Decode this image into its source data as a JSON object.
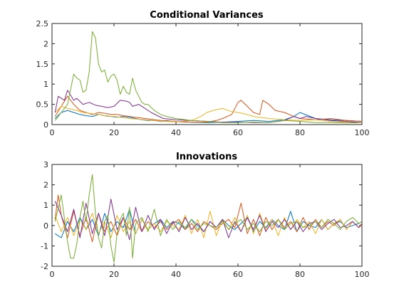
{
  "chart_data": [
    {
      "type": "line",
      "title": "Conditional Variances",
      "xlabel": "",
      "ylabel": "",
      "xlim": [
        0,
        100
      ],
      "ylim": [
        0,
        2.5
      ],
      "xticks": [
        0,
        20,
        40,
        60,
        80,
        100
      ],
      "yticks": [
        0,
        0.5,
        1,
        1.5,
        2,
        2.5
      ],
      "grid": false,
      "legend": "none",
      "series": [
        {
          "color": "#0072BD",
          "x": [
            1,
            3,
            5,
            7,
            9,
            11,
            13,
            15,
            17,
            19,
            21,
            23,
            25,
            27,
            29,
            31,
            33,
            35,
            37,
            39,
            41,
            45,
            50,
            55,
            60,
            65,
            70,
            73,
            75,
            78,
            80,
            85,
            90,
            95,
            100
          ],
          "y": [
            0.15,
            0.3,
            0.35,
            0.3,
            0.25,
            0.22,
            0.2,
            0.25,
            0.22,
            0.2,
            0.18,
            0.2,
            0.18,
            0.15,
            0.12,
            0.1,
            0.1,
            0.08,
            0.1,
            0.08,
            0.07,
            0.06,
            0.05,
            0.06,
            0.08,
            0.1,
            0.08,
            0.1,
            0.12,
            0.2,
            0.3,
            0.15,
            0.12,
            0.1,
            0.08
          ]
        },
        {
          "color": "#D95319",
          "x": [
            1,
            3,
            5,
            7,
            9,
            11,
            13,
            15,
            17,
            19,
            21,
            23,
            25,
            30,
            35,
            40,
            45,
            50,
            53,
            55,
            58,
            60,
            61,
            63,
            65,
            67,
            68,
            70,
            72,
            75,
            78,
            80,
            85,
            90,
            95,
            100
          ],
          "y": [
            0.2,
            0.45,
            0.7,
            0.5,
            0.35,
            0.3,
            0.25,
            0.3,
            0.28,
            0.25,
            0.25,
            0.22,
            0.2,
            0.15,
            0.1,
            0.08,
            0.06,
            0.06,
            0.1,
            0.15,
            0.25,
            0.55,
            0.6,
            0.45,
            0.3,
            0.25,
            0.6,
            0.5,
            0.35,
            0.3,
            0.2,
            0.15,
            0.12,
            0.15,
            0.1,
            0.08
          ]
        },
        {
          "color": "#EDB120",
          "x": [
            1,
            3,
            5,
            8,
            10,
            12,
            15,
            18,
            20,
            25,
            30,
            33,
            36,
            40,
            45,
            48,
            50,
            52,
            55,
            58,
            60,
            63,
            65,
            70,
            75,
            80,
            85,
            90,
            95,
            100
          ],
          "y": [
            0.3,
            0.45,
            0.4,
            0.35,
            0.3,
            0.28,
            0.25,
            0.2,
            0.2,
            0.15,
            0.12,
            0.1,
            0.08,
            0.07,
            0.1,
            0.2,
            0.3,
            0.35,
            0.4,
            0.32,
            0.3,
            0.25,
            0.2,
            0.15,
            0.12,
            0.1,
            0.12,
            0.08,
            0.06,
            0.05
          ]
        },
        {
          "color": "#7E2F8E",
          "x": [
            1,
            2,
            4,
            5,
            7,
            8,
            10,
            12,
            14,
            16,
            18,
            20,
            22,
            24,
            25,
            26,
            28,
            30,
            32,
            34,
            36,
            40,
            45,
            50,
            55,
            60,
            65,
            70,
            75,
            78,
            80,
            82,
            85,
            90,
            95,
            100
          ],
          "y": [
            0.3,
            0.7,
            0.6,
            0.85,
            0.6,
            0.65,
            0.5,
            0.55,
            0.48,
            0.45,
            0.42,
            0.45,
            0.6,
            0.58,
            0.55,
            0.45,
            0.5,
            0.4,
            0.3,
            0.22,
            0.15,
            0.12,
            0.1,
            0.08,
            0.06,
            0.06,
            0.05,
            0.05,
            0.1,
            0.2,
            0.15,
            0.2,
            0.15,
            0.1,
            0.08,
            0.05
          ]
        },
        {
          "color": "#77AC30",
          "x": [
            1,
            3,
            5,
            7,
            8,
            9,
            10,
            11,
            12,
            13,
            14,
            15,
            16,
            17,
            18,
            19,
            20,
            21,
            22,
            23,
            24,
            25,
            26,
            27,
            28,
            29,
            30,
            31,
            32,
            33,
            35,
            37,
            40,
            45,
            50,
            55,
            60,
            65,
            70,
            75,
            80,
            85,
            90,
            95,
            100
          ],
          "y": [
            0.1,
            0.3,
            0.5,
            1.25,
            1.15,
            1.1,
            0.8,
            0.85,
            1.3,
            2.3,
            2.15,
            1.5,
            1.3,
            1.35,
            1.05,
            1.2,
            1.25,
            1.1,
            0.75,
            0.95,
            0.8,
            0.75,
            1.15,
            0.85,
            0.7,
            0.55,
            0.5,
            0.5,
            0.42,
            0.35,
            0.25,
            0.2,
            0.15,
            0.1,
            0.08,
            0.05,
            0.05,
            0.06,
            0.05,
            0.1,
            0.08,
            0.05,
            0.05,
            0.04,
            0.05
          ]
        }
      ]
    },
    {
      "type": "line",
      "title": "Innovations",
      "xlabel": "",
      "ylabel": "",
      "xlim": [
        0,
        100
      ],
      "ylim": [
        -2,
        3
      ],
      "xticks": [
        0,
        20,
        40,
        60,
        80,
        100
      ],
      "yticks": [
        -2,
        -1,
        0,
        1,
        2,
        3
      ],
      "grid": false,
      "legend": "none",
      "series": [
        {
          "color": "#0072BD",
          "x": [
            1,
            3,
            5,
            7,
            9,
            11,
            13,
            15,
            17,
            19,
            21,
            23,
            25,
            27,
            29,
            31,
            33,
            35,
            37,
            39,
            41,
            43,
            45,
            47,
            49,
            51,
            53,
            55,
            57,
            59,
            61,
            63,
            65,
            67,
            69,
            71,
            73,
            75,
            77,
            79,
            81,
            83,
            85,
            87,
            89,
            91,
            93,
            95,
            97,
            99,
            100
          ],
          "y": [
            -0.4,
            -0.6,
            0.2,
            -0.3,
            0.4,
            -0.2,
            0.3,
            -0.5,
            0.6,
            -0.3,
            0.2,
            -0.1,
            0.8,
            -0.4,
            0.3,
            -0.2,
            0.1,
            0.3,
            -0.1,
            0.2,
            0.1,
            -0.2,
            0.3,
            0.0,
            -0.3,
            0.2,
            -0.1,
            0.3,
            0.0,
            -0.2,
            0.1,
            0.4,
            -0.3,
            0.2,
            -0.1,
            0.3,
            0.0,
            -0.2,
            0.7,
            -0.3,
            0.2,
            0.0,
            -0.1,
            0.3,
            -0.2,
            0.1,
            0.2,
            -0.1,
            0.0,
            0.1,
            0.2
          ]
        },
        {
          "color": "#D95319",
          "x": [
            1,
            2,
            3,
            5,
            7,
            9,
            11,
            13,
            15,
            17,
            19,
            21,
            23,
            25,
            27,
            29,
            31,
            33,
            35,
            37,
            39,
            41,
            43,
            45,
            47,
            49,
            51,
            53,
            55,
            57,
            59,
            61,
            63,
            65,
            67,
            69,
            71,
            73,
            75,
            77,
            79,
            81,
            83,
            85,
            87,
            89,
            91,
            93,
            95,
            97,
            99,
            100
          ],
          "y": [
            0.3,
            1.5,
            0.5,
            -0.6,
            0.7,
            -0.5,
            0.4,
            -0.8,
            0.6,
            -0.3,
            0.2,
            -0.5,
            0.4,
            -0.2,
            0.3,
            -0.3,
            0.2,
            -0.1,
            0.2,
            -0.2,
            0.1,
            0.3,
            -0.2,
            0.1,
            -0.3,
            0.2,
            0.0,
            -0.2,
            0.1,
            0.3,
            -0.1,
            1.1,
            -0.4,
            0.3,
            -0.5,
            0.4,
            -0.2,
            0.3,
            -0.1,
            0.2,
            -0.3,
            0.4,
            -0.2,
            0.3,
            -0.1,
            0.2,
            0.0,
            0.3,
            -0.2,
            0.2,
            -0.1,
            0.1
          ]
        },
        {
          "color": "#EDB120",
          "x": [
            1,
            3,
            5,
            7,
            9,
            11,
            13,
            15,
            17,
            19,
            21,
            23,
            25,
            27,
            29,
            31,
            33,
            35,
            37,
            39,
            41,
            43,
            45,
            47,
            49,
            51,
            53,
            55,
            57,
            59,
            61,
            63,
            65,
            67,
            69,
            71,
            73,
            75,
            77,
            79,
            81,
            83,
            85,
            87,
            89,
            91,
            93,
            95,
            97,
            99,
            100
          ],
          "y": [
            0.5,
            -0.3,
            0.4,
            -0.5,
            0.3,
            -0.2,
            0.6,
            -0.4,
            0.2,
            -0.6,
            0.5,
            -0.3,
            0.2,
            -0.4,
            0.3,
            -0.2,
            0.1,
            -0.3,
            0.2,
            0.0,
            -0.2,
            0.5,
            -0.4,
            0.3,
            -0.6,
            0.7,
            -0.5,
            0.3,
            -0.2,
            0.4,
            -0.3,
            0.5,
            -0.4,
            0.6,
            -0.2,
            0.3,
            -0.5,
            0.4,
            -0.2,
            0.3,
            -0.1,
            0.2,
            -0.4,
            0.3,
            -0.2,
            0.1,
            0.3,
            -0.2,
            0.2,
            -0.1,
            0.0
          ]
        },
        {
          "color": "#7E2F8E",
          "x": [
            1,
            3,
            5,
            7,
            9,
            11,
            13,
            15,
            17,
            19,
            21,
            23,
            25,
            27,
            29,
            31,
            33,
            35,
            37,
            39,
            41,
            43,
            45,
            47,
            49,
            51,
            53,
            55,
            57,
            59,
            61,
            63,
            65,
            67,
            69,
            71,
            73,
            75,
            77,
            79,
            81,
            83,
            85,
            87,
            89,
            91,
            93,
            95,
            97,
            99,
            100
          ],
          "y": [
            1.2,
            0.5,
            -0.3,
            0.8,
            -0.6,
            1.1,
            -0.4,
            0.6,
            -0.5,
            1.3,
            -0.2,
            0.4,
            -0.7,
            0.9,
            -0.3,
            0.5,
            -0.2,
            0.3,
            -0.4,
            0.2,
            -0.3,
            0.4,
            -0.2,
            0.1,
            -0.3,
            0.2,
            -0.1,
            0.3,
            -0.6,
            0.2,
            -0.3,
            0.4,
            -0.2,
            0.5,
            -0.3,
            0.2,
            -0.1,
            0.3,
            -0.2,
            0.2,
            -0.3,
            0.1,
            0.2,
            -0.2,
            0.1,
            0.3,
            -0.1,
            0.0,
            0.2,
            -0.1,
            0.1
          ]
        },
        {
          "color": "#77AC30",
          "x": [
            1,
            3,
            5,
            6,
            7,
            8,
            9,
            10,
            11,
            12,
            13,
            14,
            15,
            16,
            17,
            18,
            19,
            20,
            21,
            22,
            23,
            24,
            25,
            26,
            27,
            29,
            31,
            33,
            35,
            37,
            39,
            41,
            43,
            45,
            47,
            49,
            51,
            53,
            55,
            57,
            59,
            61,
            63,
            65,
            67,
            69,
            71,
            73,
            75,
            77,
            79,
            81,
            83,
            85,
            87,
            89,
            91,
            93,
            95,
            97,
            99,
            100
          ],
          "y": [
            0.2,
            1.5,
            -0.8,
            -1.6,
            -1.6,
            -0.9,
            0.4,
            1.2,
            0.2,
            1.5,
            2.5,
            0.6,
            -0.6,
            -1.1,
            0.2,
            0.5,
            -1.0,
            -1.8,
            -0.4,
            0.3,
            0.6,
            -0.5,
            0.9,
            -1.6,
            0.1,
            0.4,
            -0.3,
            0.8,
            -0.5,
            0.3,
            -0.2,
            0.2,
            -0.1,
            0.3,
            -0.2,
            0.1,
            0.0,
            -0.1,
            0.2,
            -0.2,
            0.1,
            0.3,
            -0.2,
            0.1,
            -0.3,
            0.2,
            0.0,
            0.3,
            -0.2,
            0.1,
            0.2,
            -0.1,
            0.0,
            0.2,
            -0.1,
            0.3,
            0.1,
            -0.2,
            0.2,
            0.4,
            0.1,
            0.2
          ]
        }
      ]
    }
  ]
}
